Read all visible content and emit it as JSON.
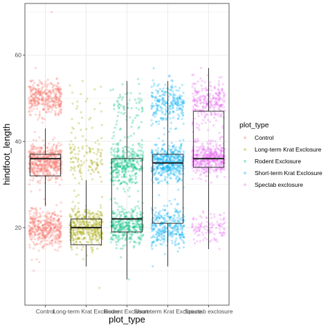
{
  "chart_data": {
    "type": "boxplot-jitter",
    "xlabel": "plot_type",
    "ylabel": "hindfoot_length",
    "categories": [
      "Control",
      "Long-term Krat Exclosure",
      "Rodent Exclosure",
      "Short-term Krat Exclosure",
      "Spectab exclosure"
    ],
    "ylim": [
      2,
      72
    ],
    "yticks": [
      20,
      40,
      60
    ],
    "grid": true,
    "legend_title": "plot_type",
    "legend_position": "right",
    "colors": [
      "#F8766D",
      "#A3A500",
      "#00BF7D",
      "#00B0F6",
      "#E76BF3"
    ],
    "boxes": [
      {
        "category": "Control",
        "whisker_low": 25,
        "q1": 32,
        "median": 36,
        "q3": 37,
        "whisker_high": 43
      },
      {
        "category": "Long-term Krat Exclosure",
        "whisker_low": 11,
        "q1": 16,
        "median": 20,
        "q3": 22,
        "whisker_high": 31
      },
      {
        "category": "Rodent Exclosure",
        "whisker_low": 8,
        "q1": 19,
        "median": 22,
        "q3": 36,
        "whisker_high": 54
      },
      {
        "category": "Short-term Krat Exclosure",
        "whisker_low": 11,
        "q1": 21,
        "median": 35,
        "q3": 37,
        "whisker_high": 54
      },
      {
        "category": "Spectab exclosure",
        "whisker_low": 15,
        "q1": 34,
        "median": 36,
        "q3": 47,
        "whisker_high": 57
      }
    ],
    "point_clusters": [
      {
        "category": "Control",
        "clusters": [
          {
            "center": 20,
            "spread": 2.2,
            "count": 420
          },
          {
            "center": 35,
            "spread": 2.2,
            "count": 520
          },
          {
            "center": 50,
            "spread": 2.0,
            "count": 360
          }
        ],
        "outliers": [
          70,
          57,
          10,
          12
        ]
      },
      {
        "category": "Long-term Krat Exclosure",
        "clusters": [
          {
            "center": 20,
            "spread": 2.2,
            "count": 380
          },
          {
            "center": 35,
            "spread": 3.2,
            "count": 120
          },
          {
            "center": 47,
            "spread": 3.5,
            "count": 25
          }
        ],
        "outliers": [
          6,
          54,
          53
        ]
      },
      {
        "category": "Rodent Exclosure",
        "clusters": [
          {
            "center": 20,
            "spread": 2.3,
            "count": 340
          },
          {
            "center": 35,
            "spread": 2.5,
            "count": 340
          },
          {
            "center": 48,
            "spread": 3.5,
            "count": 70
          }
        ],
        "outliers": [
          8
        ]
      },
      {
        "category": "Short-term Krat Exclosure",
        "clusters": [
          {
            "center": 20,
            "spread": 2.2,
            "count": 300
          },
          {
            "center": 35,
            "spread": 2.2,
            "count": 460
          },
          {
            "center": 49,
            "spread": 2.5,
            "count": 240
          }
        ],
        "outliers": [
          11,
          54
        ]
      },
      {
        "category": "Spectab exclosure",
        "clusters": [
          {
            "center": 20,
            "spread": 1.8,
            "count": 110
          },
          {
            "center": 36,
            "spread": 2.0,
            "count": 430
          },
          {
            "center": 49,
            "spread": 2.5,
            "count": 260
          }
        ],
        "outliers": [
          57,
          15
        ]
      }
    ]
  }
}
